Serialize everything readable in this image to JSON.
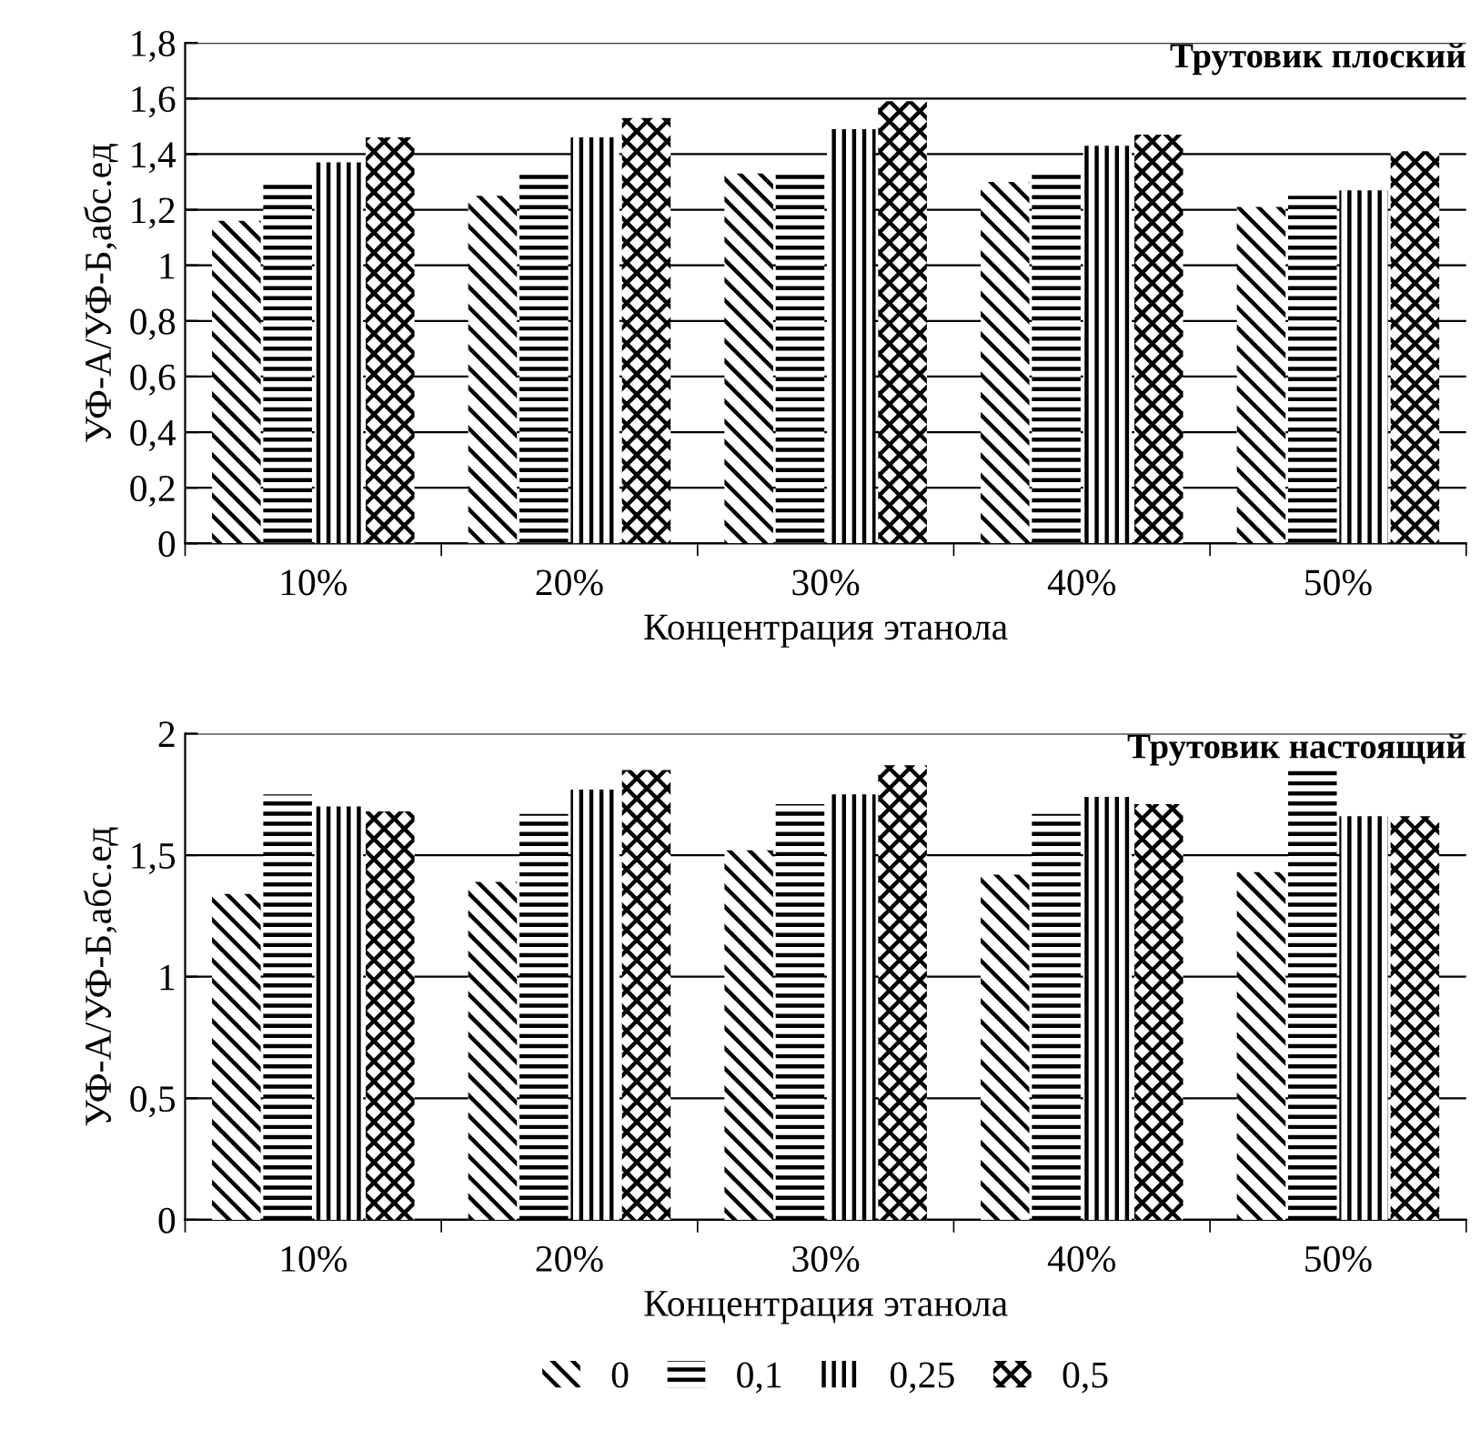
{
  "chart_data": [
    {
      "type": "bar",
      "title": "Трутовик плоский",
      "xlabel": "Концентрация этанола",
      "ylabel": "УФ-А/УФ-Б,абс.ед",
      "categories": [
        "10%",
        "20%",
        "30%",
        "40%",
        "50%"
      ],
      "series": [
        {
          "color": "#000000",
          "values": [
            1.16,
            1.25,
            1.33,
            1.3,
            1.21
          ]
        },
        {
          "color": "#000000",
          "values": [
            1.29,
            1.33,
            1.33,
            1.33,
            1.25
          ]
        },
        {
          "color": "#000000",
          "values": [
            1.37,
            1.46,
            1.49,
            1.43,
            1.27
          ]
        },
        {
          "color": "#000000",
          "values": [
            1.46,
            1.53,
            1.59,
            1.47,
            1.41
          ]
        }
      ],
      "ylim": [
        0,
        1.8
      ],
      "yticks": [
        0,
        {
          "value": 0.2,
          "label": "0,2"
        },
        {
          "value": 0.4,
          "label": "0,4"
        },
        {
          "value": 0.6,
          "label": "0,6"
        },
        {
          "value": 0.8,
          "label": "0,8"
        },
        1,
        {
          "value": 1.2,
          "label": "1,2"
        },
        {
          "value": 1.4,
          "label": "1,4"
        },
        {
          "value": 1.6,
          "label": "1,6"
        },
        {
          "value": 1.8,
          "label": "1,8"
        }
      ],
      "grid": "y"
    },
    {
      "type": "bar",
      "title": "Трутовик настоящий",
      "xlabel": "Концентрация этанола",
      "ylabel": "УФ-А/УФ-Б,абс.ед",
      "categories": [
        "10%",
        "20%",
        "30%",
        "40%",
        "50%"
      ],
      "series": [
        {
          "name": "0",
          "color": "#000000",
          "values": [
            1.34,
            1.39,
            1.52,
            1.42,
            1.43
          ]
        },
        {
          "name": "0,1",
          "color": "#000000",
          "values": [
            1.75,
            1.67,
            1.71,
            1.67,
            1.85
          ]
        },
        {
          "name": "0,25",
          "color": "#000000",
          "values": [
            1.7,
            1.77,
            1.75,
            1.74,
            1.66
          ]
        },
        {
          "name": "0,5",
          "color": "#000000",
          "values": [
            1.68,
            1.85,
            1.87,
            1.71,
            1.66
          ]
        }
      ],
      "ylim": [
        0,
        2
      ],
      "yticks": [
        0,
        {
          "value": 0.5,
          "label": "0,5"
        },
        1,
        {
          "value": 1.5,
          "label": "1,5"
        },
        2
      ],
      "grid": "y",
      "legend": "bottom"
    }
  ]
}
